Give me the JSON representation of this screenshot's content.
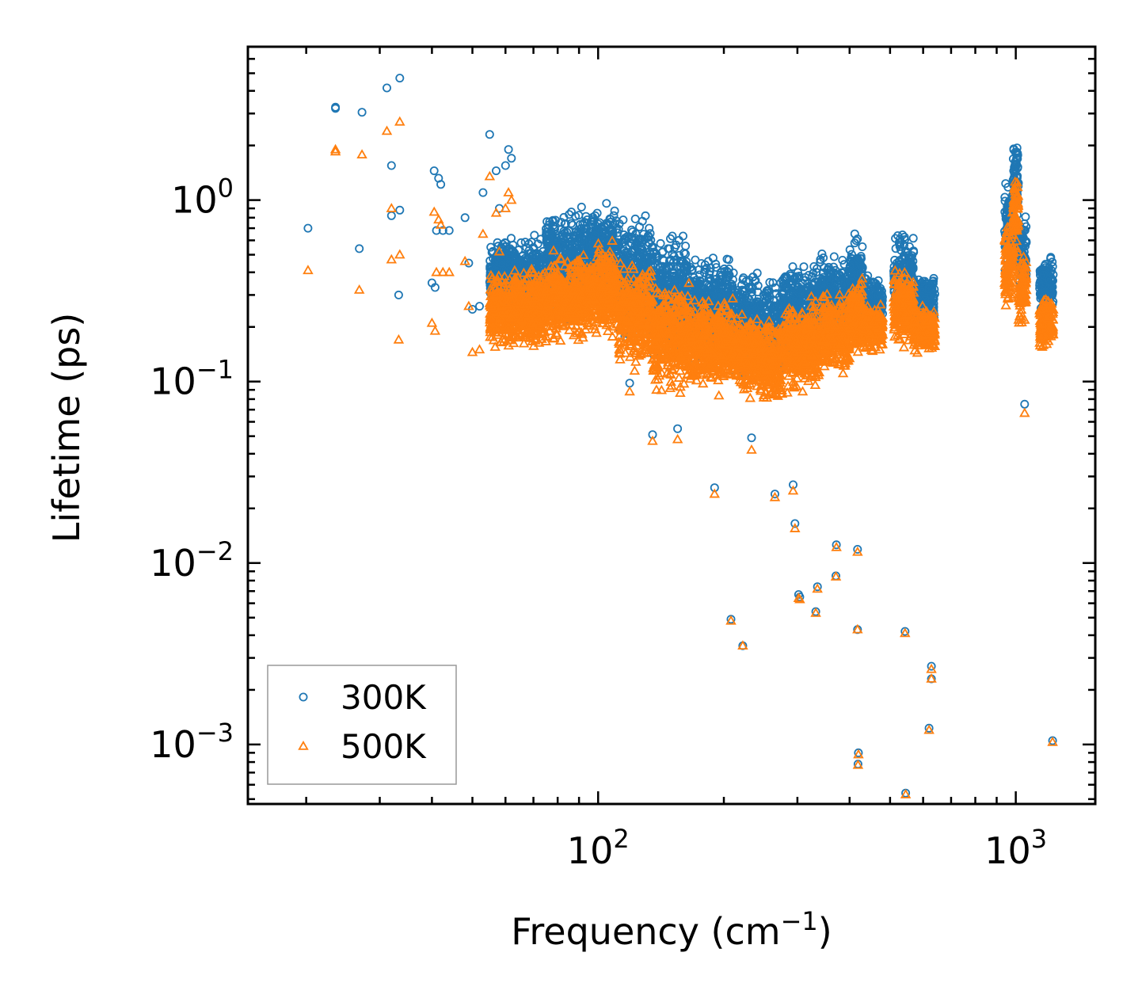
{
  "chart_data": {
    "type": "scatter",
    "title": "",
    "xlabel": "Frequency (cm",
    "xlabel_sup": "−1",
    "xlabel_tail": ")",
    "ylabel": "Lifetime (ps)",
    "xscale": "log",
    "yscale": "log",
    "xlim": [
      14.5,
      1550
    ],
    "ylim": [
      0.00047,
      7.0
    ],
    "x_ticks": [
      {
        "value": 100,
        "base": "10",
        "exp": "2"
      },
      {
        "value": 1000,
        "base": "10",
        "exp": "3"
      }
    ],
    "y_ticks": [
      {
        "value": 1,
        "base": "10",
        "exp": "0"
      },
      {
        "value": 0.1,
        "base": "10",
        "exp": "−1"
      },
      {
        "value": 0.01,
        "base": "10",
        "exp": "−2"
      },
      {
        "value": 0.001,
        "base": "10",
        "exp": "−3"
      }
    ],
    "legend": {
      "position": "lower-left",
      "entries": [
        "300K",
        "500K"
      ]
    },
    "series": [
      {
        "name": "300K",
        "marker": "circle",
        "color": "#1f77b4",
        "outliers": [
          [
            20.2,
            0.7
          ],
          [
            23.5,
            3.25
          ],
          [
            23.5,
            3.2
          ],
          [
            26.8,
            0.54
          ],
          [
            27.2,
            3.05
          ],
          [
            31.2,
            4.15
          ],
          [
            32,
            0.82
          ],
          [
            32,
            1.55
          ],
          [
            33.5,
            4.7
          ],
          [
            33.5,
            0.88
          ],
          [
            33.3,
            0.3
          ],
          [
            40.5,
            1.45
          ],
          [
            41.5,
            1.32
          ],
          [
            42,
            1.22
          ],
          [
            42.5,
            0.68
          ],
          [
            44,
            0.68
          ],
          [
            41,
            0.68
          ],
          [
            40,
            0.35
          ],
          [
            40.7,
            0.33
          ],
          [
            48,
            0.8
          ],
          [
            49,
            0.45
          ],
          [
            50,
            0.25
          ],
          [
            52,
            0.26
          ],
          [
            55,
            2.3
          ],
          [
            57,
            1.45
          ],
          [
            53,
            1.1
          ],
          [
            60,
            1.55
          ],
          [
            61,
            1.9
          ],
          [
            62,
            1.7
          ],
          [
            58,
            0.9
          ],
          [
            119,
            0.098
          ],
          [
            135,
            0.051
          ],
          [
            155,
            0.055
          ],
          [
            233,
            0.049
          ],
          [
            190,
            0.026
          ],
          [
            265,
            0.024
          ],
          [
            293,
            0.027
          ],
          [
            296,
            0.0165
          ],
          [
            302,
            0.0067
          ],
          [
            304,
            0.0065
          ],
          [
            208,
            0.0049
          ],
          [
            222,
            0.0035
          ],
          [
            332,
            0.0054
          ],
          [
            335,
            0.0074
          ],
          [
            372,
            0.0126
          ],
          [
            371,
            0.0085
          ],
          [
            418,
            0.0119
          ],
          [
            418,
            0.0043
          ],
          [
            420,
            0.0009
          ],
          [
            419,
            0.00078
          ],
          [
            543,
            0.0042
          ],
          [
            545,
            0.00054
          ],
          [
            628,
            0.0027
          ],
          [
            628,
            0.0023
          ],
          [
            620,
            0.00123
          ],
          [
            1050,
            0.075
          ],
          [
            1225,
            0.00105
          ]
        ],
        "clusters": [
          {
            "x0": 55,
            "x1": 75,
            "ymin": 0.2,
            "ymax": 0.7
          },
          {
            "x0": 75,
            "x1": 95,
            "ymin": 0.2,
            "ymax": 1.05
          },
          {
            "x0": 95,
            "x1": 112,
            "ymin": 0.22,
            "ymax": 1.1
          },
          {
            "x0": 112,
            "x1": 135,
            "ymin": 0.16,
            "ymax": 0.9
          },
          {
            "x0": 135,
            "x1": 165,
            "ymin": 0.12,
            "ymax": 0.7
          },
          {
            "x0": 165,
            "x1": 210,
            "ymin": 0.12,
            "ymax": 0.55
          },
          {
            "x0": 210,
            "x1": 245,
            "ymin": 0.1,
            "ymax": 0.45
          },
          {
            "x0": 245,
            "x1": 275,
            "ymin": 0.09,
            "ymax": 0.4
          },
          {
            "x0": 275,
            "x1": 340,
            "ymin": 0.12,
            "ymax": 0.5
          },
          {
            "x0": 340,
            "x1": 400,
            "ymin": 0.15,
            "ymax": 0.55
          },
          {
            "x0": 400,
            "x1": 430,
            "ymin": 0.2,
            "ymax": 0.7
          },
          {
            "x0": 430,
            "x1": 480,
            "ymin": 0.18,
            "ymax": 0.4
          },
          {
            "x0": 510,
            "x1": 570,
            "ymin": 0.2,
            "ymax": 0.72
          },
          {
            "x0": 570,
            "x1": 640,
            "ymin": 0.18,
            "ymax": 0.42
          },
          {
            "x0": 940,
            "x1": 990,
            "ymin": 0.35,
            "ymax": 1.5
          },
          {
            "x0": 985,
            "x1": 1015,
            "ymin": 0.7,
            "ymax": 2.5
          },
          {
            "x0": 1015,
            "x1": 1060,
            "ymin": 0.3,
            "ymax": 0.9
          },
          {
            "x0": 1140,
            "x1": 1230,
            "ymin": 0.22,
            "ymax": 0.52
          }
        ]
      },
      {
        "name": "500K",
        "marker": "triangle",
        "color": "#ff7f0e",
        "outliers": [
          [
            20.2,
            0.41
          ],
          [
            23.5,
            1.9
          ],
          [
            23.5,
            1.85
          ],
          [
            26.8,
            0.32
          ],
          [
            27.2,
            1.78
          ],
          [
            31.2,
            2.4
          ],
          [
            32,
            0.47
          ],
          [
            32,
            0.9
          ],
          [
            33.5,
            2.7
          ],
          [
            33.5,
            0.5
          ],
          [
            33.3,
            0.17
          ],
          [
            40.5,
            0.86
          ],
          [
            41.5,
            0.78
          ],
          [
            42,
            0.73
          ],
          [
            42.5,
            0.4
          ],
          [
            44,
            0.4
          ],
          [
            41,
            0.4
          ],
          [
            40,
            0.21
          ],
          [
            40.7,
            0.19
          ],
          [
            48,
            0.46
          ],
          [
            49,
            0.26
          ],
          [
            50,
            0.145
          ],
          [
            52,
            0.15
          ],
          [
            55,
            1.35
          ],
          [
            57,
            0.85
          ],
          [
            53,
            0.65
          ],
          [
            60,
            0.9
          ],
          [
            61,
            1.1
          ],
          [
            62,
            1.0
          ],
          [
            58,
            0.52
          ],
          [
            119,
            0.088
          ],
          [
            135,
            0.047
          ],
          [
            155,
            0.048
          ],
          [
            233,
            0.042
          ],
          [
            190,
            0.024
          ],
          [
            265,
            0.023
          ],
          [
            293,
            0.025
          ],
          [
            296,
            0.0155
          ],
          [
            302,
            0.0064
          ],
          [
            304,
            0.0063
          ],
          [
            208,
            0.0048
          ],
          [
            222,
            0.0035
          ],
          [
            332,
            0.0053
          ],
          [
            335,
            0.0072
          ],
          [
            372,
            0.0122
          ],
          [
            371,
            0.0084
          ],
          [
            418,
            0.0115
          ],
          [
            418,
            0.0043
          ],
          [
            420,
            0.00088
          ],
          [
            419,
            0.00077
          ],
          [
            543,
            0.0041
          ],
          [
            545,
            0.00053
          ],
          [
            628,
            0.0026
          ],
          [
            628,
            0.0023
          ],
          [
            620,
            0.0012
          ],
          [
            1050,
            0.067
          ],
          [
            1225,
            0.00103
          ]
        ],
        "clusters": [
          {
            "x0": 55,
            "x1": 75,
            "ymin": 0.14,
            "ymax": 0.45
          },
          {
            "x0": 75,
            "x1": 95,
            "ymin": 0.15,
            "ymax": 0.55
          },
          {
            "x0": 95,
            "x1": 112,
            "ymin": 0.16,
            "ymax": 0.62
          },
          {
            "x0": 112,
            "x1": 135,
            "ymin": 0.11,
            "ymax": 0.52
          },
          {
            "x0": 135,
            "x1": 165,
            "ymin": 0.08,
            "ymax": 0.4
          },
          {
            "x0": 165,
            "x1": 210,
            "ymin": 0.08,
            "ymax": 0.32
          },
          {
            "x0": 210,
            "x1": 245,
            "ymin": 0.075,
            "ymax": 0.26
          },
          {
            "x0": 245,
            "x1": 275,
            "ymin": 0.068,
            "ymax": 0.24
          },
          {
            "x0": 275,
            "x1": 340,
            "ymin": 0.08,
            "ymax": 0.3
          },
          {
            "x0": 340,
            "x1": 400,
            "ymin": 0.1,
            "ymax": 0.33
          },
          {
            "x0": 400,
            "x1": 430,
            "ymin": 0.12,
            "ymax": 0.42
          },
          {
            "x0": 430,
            "x1": 480,
            "ymin": 0.14,
            "ymax": 0.28
          },
          {
            "x0": 510,
            "x1": 570,
            "ymin": 0.14,
            "ymax": 0.45
          },
          {
            "x0": 570,
            "x1": 640,
            "ymin": 0.14,
            "ymax": 0.27
          },
          {
            "x0": 940,
            "x1": 990,
            "ymin": 0.23,
            "ymax": 0.9
          },
          {
            "x0": 985,
            "x1": 1015,
            "ymin": 0.45,
            "ymax": 1.5
          },
          {
            "x0": 1015,
            "x1": 1060,
            "ymin": 0.18,
            "ymax": 0.55
          },
          {
            "x0": 1140,
            "x1": 1230,
            "ymin": 0.14,
            "ymax": 0.32
          }
        ]
      }
    ]
  }
}
